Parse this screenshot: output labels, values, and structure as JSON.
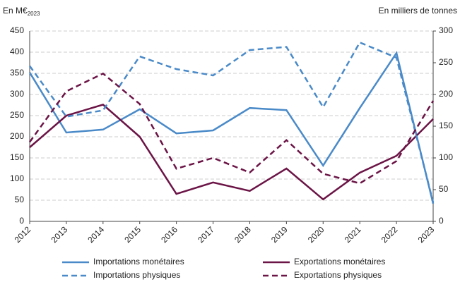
{
  "chart_data": {
    "type": "line",
    "ylabel": "En M€",
    "ylabel_subscript": "2023",
    "y2label": "En milliers de tonnes",
    "x": [
      2012,
      2013,
      2014,
      2015,
      2016,
      2017,
      2018,
      2019,
      2020,
      2021,
      2022,
      2023
    ],
    "xlim": [
      2012,
      2023
    ],
    "xticks": [
      2012,
      2013,
      2014,
      2015,
      2016,
      2017,
      2018,
      2019,
      2020,
      2021,
      2022,
      2023
    ],
    "ylim": [
      0,
      450
    ],
    "yticks": [
      0,
      50,
      100,
      150,
      200,
      250,
      300,
      350,
      400,
      450
    ],
    "y2lim": [
      0,
      300
    ],
    "y2ticks": [
      0,
      50,
      100,
      150,
      200,
      250,
      300
    ],
    "grid": true,
    "series": [
      {
        "name": "Importations monétaires",
        "color": "#4a8ac8",
        "dashed": false,
        "values": [
          352,
          210,
          217,
          265,
          208,
          215,
          268,
          263,
          132,
          268,
          398,
          42
        ]
      },
      {
        "name": "Exportations monétaires",
        "color": "#6b1446",
        "dashed": false,
        "values": [
          175,
          250,
          276,
          200,
          65,
          92,
          72,
          125,
          52,
          115,
          155,
          242
        ]
      },
      {
        "name": "Importations physiques",
        "color": "#4a8ac8",
        "dashed": true,
        "axis": "y2",
        "values": [
          245,
          165,
          175,
          260,
          240,
          230,
          270,
          275,
          180,
          282,
          258,
          30
        ]
      },
      {
        "name": "Exportations physiques",
        "color": "#6b1446",
        "dashed": true,
        "axis": "y2",
        "values": [
          125,
          205,
          233,
          185,
          83,
          100,
          77,
          128,
          75,
          60,
          95,
          190
        ]
      }
    ]
  }
}
